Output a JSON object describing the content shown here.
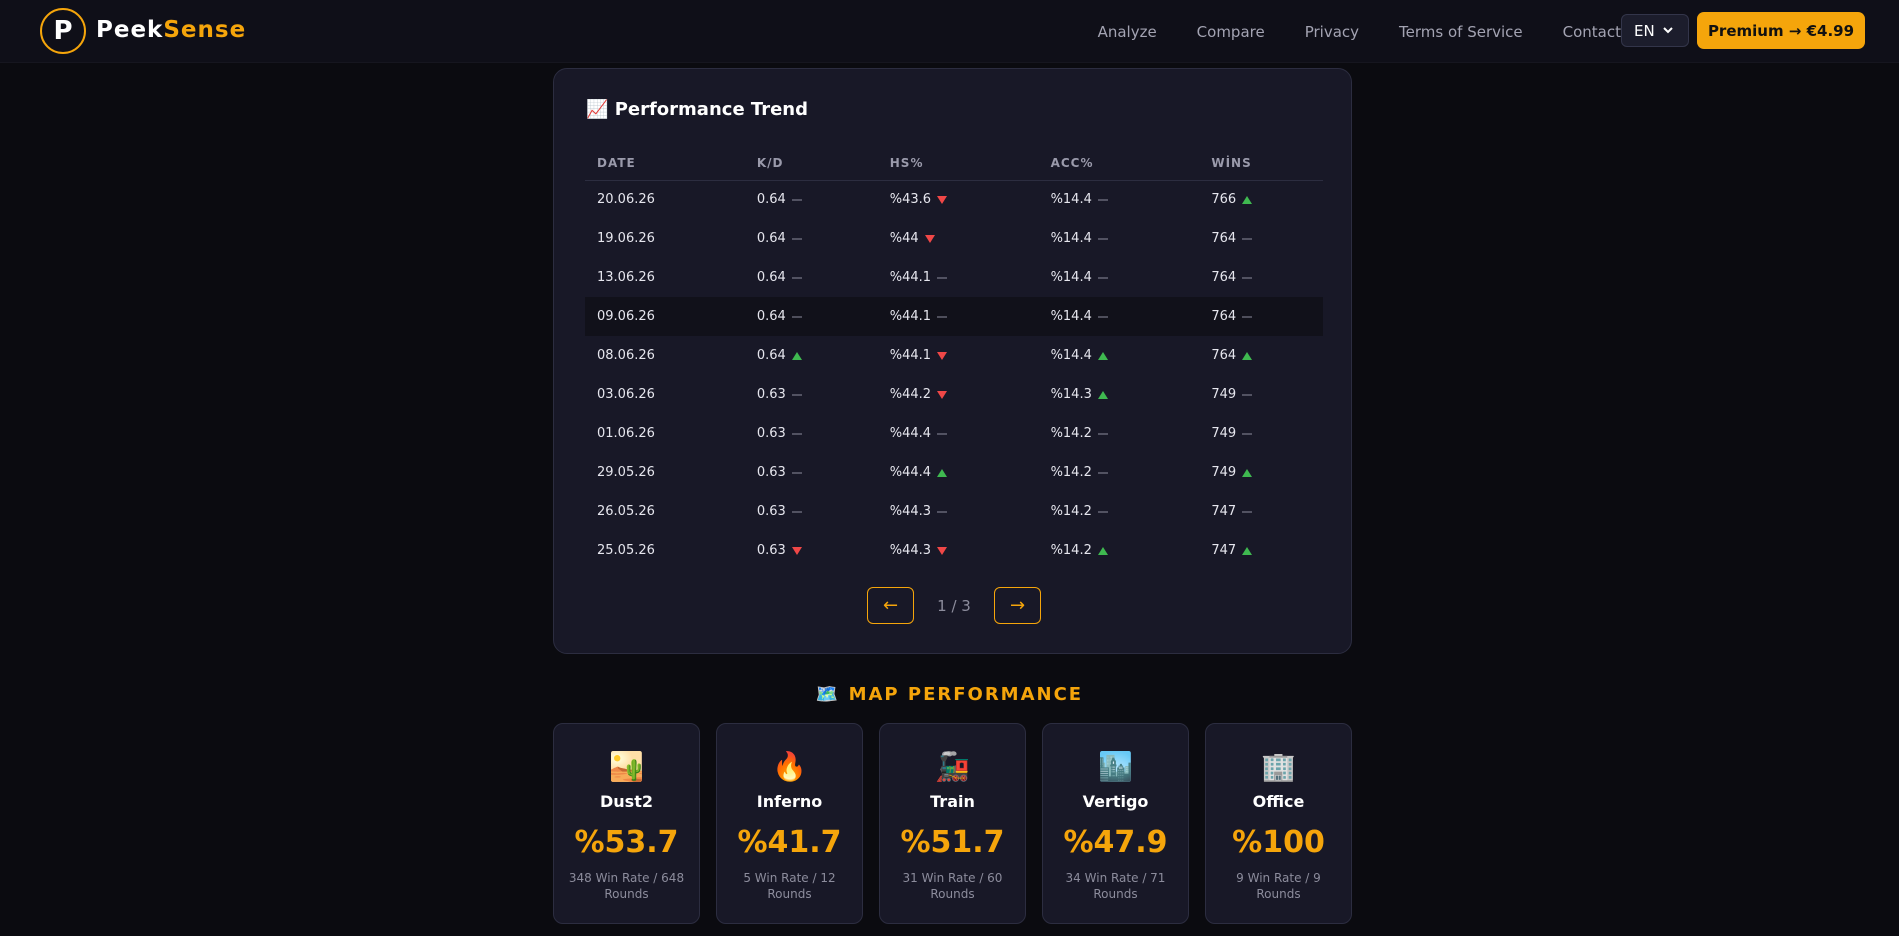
{
  "nav": {
    "logo_letter": "P",
    "brand_first": "Peek",
    "brand_second": "Sense",
    "links": [
      "Analyze",
      "Compare",
      "Privacy",
      "Terms of Service",
      "Contact"
    ],
    "language": "EN",
    "premium": "Premium → €4.99"
  },
  "trend": {
    "icon": "📈",
    "title": "Performance Trend",
    "headers": [
      "DATE",
      "K/D",
      "HS%",
      "ACC%",
      "WİNS"
    ],
    "rows": [
      {
        "date": "20.06.26",
        "cells": [
          {
            "text": "0.64",
            "trend": "flat"
          },
          {
            "text": "%43.6",
            "trend": "down"
          },
          {
            "text": "%14.4",
            "trend": "flat"
          },
          {
            "text": "766",
            "trend": "up"
          }
        ]
      },
      {
        "date": "19.06.26",
        "cells": [
          {
            "text": "0.64",
            "trend": "flat"
          },
          {
            "text": "%44",
            "trend": "down"
          },
          {
            "text": "%14.4",
            "trend": "flat"
          },
          {
            "text": "764",
            "trend": "flat"
          }
        ]
      },
      {
        "date": "13.06.26",
        "cells": [
          {
            "text": "0.64",
            "trend": "flat"
          },
          {
            "text": "%44.1",
            "trend": "flat"
          },
          {
            "text": "%14.4",
            "trend": "flat"
          },
          {
            "text": "764",
            "trend": "flat"
          }
        ]
      },
      {
        "date": "09.06.26",
        "cells": [
          {
            "text": "0.64",
            "trend": "flat"
          },
          {
            "text": "%44.1",
            "trend": "flat"
          },
          {
            "text": "%14.4",
            "trend": "flat"
          },
          {
            "text": "764",
            "trend": "flat"
          }
        ]
      },
      {
        "date": "08.06.26",
        "cells": [
          {
            "text": "0.64",
            "trend": "up"
          },
          {
            "text": "%44.1",
            "trend": "down"
          },
          {
            "text": "%14.4",
            "trend": "up"
          },
          {
            "text": "764",
            "trend": "up"
          }
        ]
      },
      {
        "date": "03.06.26",
        "cells": [
          {
            "text": "0.63",
            "trend": "flat"
          },
          {
            "text": "%44.2",
            "trend": "down"
          },
          {
            "text": "%14.3",
            "trend": "up"
          },
          {
            "text": "749",
            "trend": "flat"
          }
        ]
      },
      {
        "date": "01.06.26",
        "cells": [
          {
            "text": "0.63",
            "trend": "flat"
          },
          {
            "text": "%44.4",
            "trend": "flat"
          },
          {
            "text": "%14.2",
            "trend": "flat"
          },
          {
            "text": "749",
            "trend": "flat"
          }
        ]
      },
      {
        "date": "29.05.26",
        "cells": [
          {
            "text": "0.63",
            "trend": "flat"
          },
          {
            "text": "%44.4",
            "trend": "up"
          },
          {
            "text": "%14.2",
            "trend": "flat"
          },
          {
            "text": "749",
            "trend": "up"
          }
        ]
      },
      {
        "date": "26.05.26",
        "cells": [
          {
            "text": "0.63",
            "trend": "flat"
          },
          {
            "text": "%44.3",
            "trend": "flat"
          },
          {
            "text": "%14.2",
            "trend": "flat"
          },
          {
            "text": "747",
            "trend": "flat"
          }
        ]
      },
      {
        "date": "25.05.26",
        "cells": [
          {
            "text": "0.63",
            "trend": "down"
          },
          {
            "text": "%44.3",
            "trend": "down"
          },
          {
            "text": "%14.2",
            "trend": "up"
          },
          {
            "text": "747",
            "trend": "up"
          }
        ]
      }
    ],
    "prev": "←",
    "page": "1 / 3",
    "next": "→"
  },
  "maps": {
    "icon": "🗺️",
    "title": "MAP PERFORMANCE",
    "cards": [
      {
        "icon": "🏜️",
        "name": "Dust2",
        "rate": "%53.7",
        "detail": "348 Win Rate / 648 Rounds"
      },
      {
        "icon": "🔥",
        "name": "Inferno",
        "rate": "%41.7",
        "detail": "5 Win Rate / 12 Rounds"
      },
      {
        "icon": "🚂",
        "name": "Train",
        "rate": "%51.7",
        "detail": "31 Win Rate / 60 Rounds"
      },
      {
        "icon": "🏙️",
        "name": "Vertigo",
        "rate": "%47.9",
        "detail": "34 Win Rate / 71 Rounds"
      },
      {
        "icon": "🏢",
        "name": "Office",
        "rate": "%100",
        "detail": "9 Win Rate / 9 Rounds"
      }
    ]
  }
}
